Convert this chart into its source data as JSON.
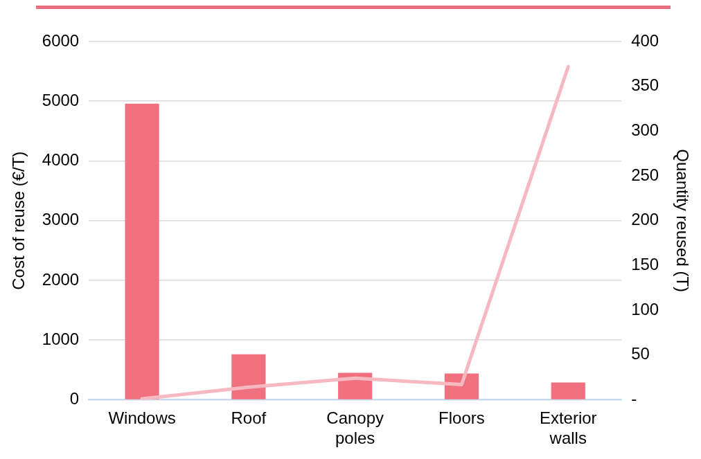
{
  "chart_data": {
    "type": "bar",
    "categories": [
      "Windows",
      "Roof",
      "Canopy poles",
      "Floors",
      "Exterior walls"
    ],
    "ylabel": "Cost of reuse (€/T)",
    "y2label": "Quantity reused (T)",
    "series": [
      {
        "color": "#f07080",
        "values": [
          4960,
          760,
          450,
          440,
          290
        ]
      },
      {
        "type": "line",
        "axis": "y2",
        "color": "#f7b9c1",
        "values": [
          1,
          14,
          24,
          17,
          372
        ]
      }
    ],
    "ylim": [
      0,
      6000
    ],
    "yticks": [
      0,
      1000,
      2000,
      3000,
      4000,
      5000,
      6000
    ],
    "y2lim": [
      0,
      400
    ],
    "y2ticks": [
      {
        "value": 0,
        "label": "-"
      },
      50,
      100,
      150,
      200,
      250,
      300,
      350,
      400
    ],
    "grid": "y",
    "legend": false
  }
}
